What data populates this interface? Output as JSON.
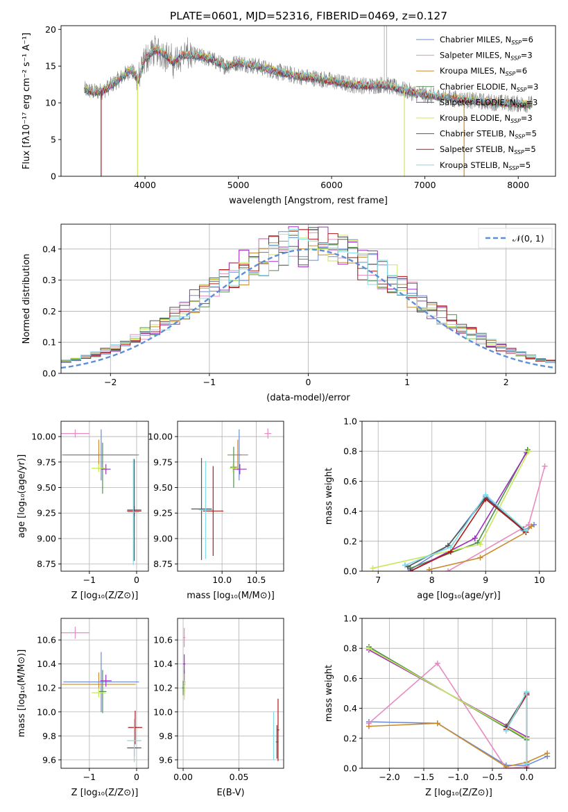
{
  "figure": {
    "title": "PLATE=0601, MJD=52316, FIBERID=0469, z=0.127"
  },
  "colors": {
    "Chabrier MILES": "#6a8ad9",
    "Salpeter MILES": "#e88ac0",
    "Kroupa MILES": "#c98a2e",
    "Chabrier ELODIE": "#4f8f4f",
    "Salpeter ELODIE": "#9b30c0",
    "Kroupa ELODIE": "#c8e85a",
    "Chabrier STELIB": "#555555",
    "Salpeter STELIB": "#b01818",
    "Kroupa STELIB": "#80dce8",
    "data": "#808080",
    "normal": "#5b8fd8"
  },
  "chart_data": [
    {
      "id": "spectrum",
      "type": "line",
      "xlabel": "wavelength [Angstrom, rest frame]",
      "ylabel": "Flux [fλ10⁻¹⁷ erg cm⁻² s⁻¹ A⁻¹]",
      "xlim": [
        3100,
        8400
      ],
      "ylim": [
        0,
        20.5
      ],
      "xticks": [
        4000,
        5000,
        6000,
        7000,
        8000
      ],
      "yticks": [
        0,
        5,
        10,
        15,
        20
      ],
      "legend_position": "top-right",
      "legend": [
        {
          "label": "Chabrier MILES, N",
          "sub": "SSP",
          "tail": "=6",
          "model": "Chabrier MILES"
        },
        {
          "label": "Salpeter MILES, N",
          "sub": "SSP",
          "tail": "=3",
          "model": "Salpeter MILES"
        },
        {
          "label": "Kroupa MILES, N",
          "sub": "SSP",
          "tail": "=6",
          "model": "Kroupa MILES"
        },
        {
          "label": "Chabrier ELODIE, N",
          "sub": "SSP",
          "tail": "=3",
          "model": "Chabrier ELODIE"
        },
        {
          "label": "Salpeter ELODIE, N",
          "sub": "SSP",
          "tail": "=3",
          "model": "Salpeter ELODIE"
        },
        {
          "label": "Kroupa ELODIE, N",
          "sub": "SSP",
          "tail": "=3",
          "model": "Kroupa ELODIE"
        },
        {
          "label": "Chabrier STELIB, N",
          "sub": "SSP",
          "tail": "=5",
          "model": "Chabrier STELIB"
        },
        {
          "label": "Salpeter STELIB, N",
          "sub": "SSP",
          "tail": "=5",
          "model": "Salpeter STELIB"
        },
        {
          "label": "Kroupa STELIB, N",
          "sub": "SSP",
          "tail": "=5",
          "model": "Kroupa STELIB"
        }
      ],
      "envelope": {
        "x": [
          3350,
          3450,
          3550,
          3650,
          3750,
          3850,
          3930,
          4000,
          4100,
          4200,
          4300,
          4400,
          4500,
          4700,
          4860,
          5000,
          5200,
          5400,
          5600,
          5800,
          6000,
          6200,
          6400,
          6560,
          6700,
          6900,
          7100,
          7300,
          7500,
          7800,
          8100
        ],
        "y": [
          11.8,
          11.5,
          11.6,
          12.5,
          13.5,
          14.5,
          13.0,
          16.0,
          17.2,
          16.8,
          15.5,
          16.5,
          16.5,
          16.0,
          15.0,
          15.5,
          15.0,
          14.3,
          13.7,
          13.4,
          13.0,
          12.5,
          12.3,
          12.5,
          12.0,
          11.3,
          10.9,
          10.6,
          10.3,
          10.0,
          9.8
        ]
      },
      "absorption_dips": [
        {
          "x": 3530,
          "y": 0
        },
        {
          "x": 3920,
          "y": 0
        },
        {
          "x": 6780,
          "y": 0
        },
        {
          "x": 7420,
          "y": 0
        }
      ],
      "emission_spikes": [
        {
          "x": 6565,
          "y": 20.5
        },
        {
          "x": 6590,
          "y": 20.5
        }
      ]
    },
    {
      "id": "residuals",
      "type": "line",
      "xlabel": "(data-model)/error",
      "ylabel": "Normed distribution",
      "xlim": [
        -2.5,
        2.5
      ],
      "ylim": [
        0,
        0.48
      ],
      "xticks": [
        -2,
        -1,
        0,
        1,
        2
      ],
      "xticklabels": [
        "−2",
        "−1",
        "0",
        "1",
        "2"
      ],
      "yticks": [
        0,
        0.1,
        0.2,
        0.3,
        0.4
      ],
      "yticklabels": [
        "0.0",
        "0.1",
        "0.2",
        "0.3",
        "0.4"
      ],
      "legend_position": "top-right",
      "legend_label": "𝒩(0, 1)",
      "normal": {
        "mu": 0,
        "sigma": 1
      },
      "bin_width": 0.1,
      "bin_start": -2.5
    },
    {
      "id": "age-vs-Z",
      "type": "scatter",
      "xlabel": "Z [log₁₀(Z/Z⊙)]",
      "ylabel": "age  [log₁₀(age/yr)]",
      "xlim": [
        -1.6,
        0.25
      ],
      "ylim": [
        8.68,
        10.15
      ],
      "xticks": [
        -1,
        0
      ],
      "xticklabels": [
        "−1",
        "0"
      ],
      "yticks": [
        8.75,
        9.0,
        9.25,
        9.5,
        9.75,
        10.0
      ],
      "yticklabels": [
        "8.75",
        "9.00",
        "9.25",
        "9.50",
        "9.75",
        "10.00"
      ],
      "points": [
        {
          "model": "Salpeter MILES",
          "x": -1.3,
          "y": 10.03,
          "xerr": 0.3,
          "yerr": 0.04
        },
        {
          "model": "Kroupa MILES",
          "x": -0.8,
          "y": 9.82,
          "xerr": 0.78,
          "yerr": 0.15
        },
        {
          "model": "Chabrier MILES",
          "x": -0.75,
          "y": 9.82,
          "xerr": 0.8,
          "yerr": 0.25
        },
        {
          "model": "Chabrier ELODIE",
          "x": -0.72,
          "y": 9.69,
          "xerr": 0.08,
          "yerr": 0.25
        },
        {
          "model": "Salpeter ELODIE",
          "x": -0.65,
          "y": 9.68,
          "xerr": 0.1,
          "yerr": 0.05
        },
        {
          "model": "Kroupa ELODIE",
          "x": -0.8,
          "y": 9.69,
          "xerr": 0.15,
          "yerr": 0.04
        },
        {
          "model": "Chabrier STELIB",
          "x": -0.05,
          "y": 9.28,
          "xerr": 0.15,
          "yerr": 0.5
        },
        {
          "model": "Salpeter STELIB",
          "x": -0.05,
          "y": 9.27,
          "xerr": 0.15,
          "yerr": 0.05
        },
        {
          "model": "Kroupa STELIB",
          "x": -0.07,
          "y": 9.26,
          "xerr": 0.12,
          "yerr": 0.52
        }
      ]
    },
    {
      "id": "age-vs-mass",
      "type": "scatter",
      "xlabel": "mass [log₁₀(M/M⊙)]",
      "ylabel": "",
      "xlim": [
        9.35,
        10.9
      ],
      "ylim": [
        8.68,
        10.15
      ],
      "xticks": [
        10.0,
        10.5
      ],
      "xticklabels": [
        "10.0",
        "10.5"
      ],
      "yticks": [
        8.75,
        9.0,
        9.25,
        9.5,
        9.75,
        10.0
      ],
      "yticklabels": [
        "8.75",
        "9.00",
        "9.25",
        "9.50",
        "9.75",
        "10.00"
      ],
      "points": [
        {
          "model": "Salpeter MILES",
          "x": 10.67,
          "y": 10.03,
          "xerr": 0.05,
          "yerr": 0.05
        },
        {
          "model": "Kroupa MILES",
          "x": 10.23,
          "y": 9.82,
          "xerr": 0.15,
          "yerr": 0.15
        },
        {
          "model": "Chabrier MILES",
          "x": 10.25,
          "y": 9.82,
          "xerr": 0.03,
          "yerr": 0.25
        },
        {
          "model": "Chabrier ELODIE",
          "x": 10.17,
          "y": 9.7,
          "xerr": 0.05,
          "yerr": 0.2
        },
        {
          "model": "Salpeter ELODIE",
          "x": 10.26,
          "y": 9.68,
          "xerr": 0.1,
          "yerr": 0.05
        },
        {
          "model": "Kroupa ELODIE",
          "x": 10.16,
          "y": 9.69,
          "xerr": 0.05,
          "yerr": 0.04
        },
        {
          "model": "Chabrier STELIB",
          "x": 9.7,
          "y": 9.29,
          "xerr": 0.15,
          "yerr": 0.5
        },
        {
          "model": "Salpeter STELIB",
          "x": 9.87,
          "y": 9.27,
          "xerr": 0.15,
          "yerr": 0.44
        },
        {
          "model": "Kroupa STELIB",
          "x": 9.76,
          "y": 9.28,
          "xerr": 0.1,
          "yerr": 0.48
        }
      ]
    },
    {
      "id": "massweight-vs-age",
      "type": "line",
      "xlabel": "age  [log₁₀(age/yr)]",
      "ylabel": "mass weight",
      "xlim": [
        6.7,
        10.3
      ],
      "ylim": [
        0,
        1
      ],
      "xticks": [
        7,
        8,
        9,
        10
      ],
      "yticks": [
        0,
        0.2,
        0.4,
        0.6,
        0.8,
        1.0
      ],
      "yticklabels": [
        "0.0",
        "0.2",
        "0.4",
        "0.6",
        "0.8",
        "1.0"
      ],
      "series": [
        {
          "model": "Chabrier MILES",
          "x": [
            7.5,
            7.6,
            8.3,
            9.0,
            9.7,
            9.9
          ],
          "y": [
            0.04,
            0.01,
            0.17,
            0.5,
            0.27,
            0.31
          ]
        },
        {
          "model": "Salpeter MILES",
          "x": [
            8.3,
            9.8,
            10.1
          ],
          "y": [
            0.0,
            0.31,
            0.7
          ]
        },
        {
          "model": "Kroupa MILES",
          "x": [
            7.95,
            8.9,
            9.75,
            9.85
          ],
          "y": [
            0.01,
            0.09,
            0.26,
            0.3
          ]
        },
        {
          "model": "Chabrier ELODIE",
          "x": [
            7.6,
            8.85,
            9.78
          ],
          "y": [
            0.02,
            0.19,
            0.81
          ]
        },
        {
          "model": "Salpeter ELODIE",
          "x": [
            7.6,
            8.8,
            9.76
          ],
          "y": [
            0.0,
            0.22,
            0.79
          ]
        },
        {
          "model": "Kroupa ELODIE",
          "x": [
            6.9,
            8.9,
            9.8
          ],
          "y": [
            0.02,
            0.18,
            0.8
          ]
        },
        {
          "model": "Chabrier STELIB",
          "x": [
            7.55,
            8.3,
            9.0,
            9.7
          ],
          "y": [
            0.03,
            0.17,
            0.49,
            0.28
          ]
        },
        {
          "model": "Salpeter STELIB",
          "x": [
            7.6,
            8.35,
            9.0,
            9.75
          ],
          "y": [
            0.0,
            0.13,
            0.48,
            0.26
          ]
        },
        {
          "model": "Kroupa STELIB",
          "x": [
            7.5,
            8.35,
            9.0,
            9.75
          ],
          "y": [
            0.04,
            0.16,
            0.51,
            0.27
          ]
        }
      ]
    },
    {
      "id": "mass-vs-Z",
      "type": "scatter",
      "xlabel": "Z [log₁₀(Z/Z⊙)]",
      "ylabel": "mass [log₁₀(M/M⊙)]",
      "xlim": [
        -1.6,
        0.25
      ],
      "ylim": [
        9.53,
        10.78
      ],
      "xticks": [
        -1,
        0
      ],
      "xticklabels": [
        "−1",
        "0"
      ],
      "yticks": [
        9.6,
        9.8,
        10.0,
        10.2,
        10.4,
        10.6
      ],
      "yticklabels": [
        "9.6",
        "9.8",
        "10.0",
        "10.2",
        "10.4",
        "10.6"
      ],
      "points": [
        {
          "model": "Salpeter MILES",
          "x": -1.3,
          "y": 10.66,
          "xerr": 0.3,
          "yerr": 0.05
        },
        {
          "model": "Kroupa MILES",
          "x": -0.8,
          "y": 10.23,
          "xerr": 0.78,
          "yerr": 0.1
        },
        {
          "model": "Chabrier MILES",
          "x": -0.75,
          "y": 10.25,
          "xerr": 0.8,
          "yerr": 0.25
        },
        {
          "model": "Chabrier ELODIE",
          "x": -0.72,
          "y": 10.17,
          "xerr": 0.08,
          "yerr": 0.18
        },
        {
          "model": "Salpeter ELODIE",
          "x": -0.65,
          "y": 10.26,
          "xerr": 0.12,
          "yerr": 0.05
        },
        {
          "model": "Kroupa ELODIE",
          "x": -0.8,
          "y": 10.16,
          "xerr": 0.15,
          "yerr": 0.04
        },
        {
          "model": "Chabrier STELIB",
          "x": -0.05,
          "y": 9.7,
          "xerr": 0.15,
          "yerr": 0.07
        },
        {
          "model": "Salpeter STELIB",
          "x": -0.03,
          "y": 9.87,
          "xerr": 0.15,
          "yerr": 0.14
        },
        {
          "model": "Kroupa STELIB",
          "x": -0.05,
          "y": 9.76,
          "xerr": 0.15,
          "yerr": 0.18
        }
      ]
    },
    {
      "id": "mass-vs-EBV",
      "type": "scatter",
      "xlabel": "E(B-V)",
      "ylabel": "",
      "xlim": [
        -0.005,
        0.09
      ],
      "ylim": [
        9.53,
        10.78
      ],
      "xticks": [
        0.0,
        0.05
      ],
      "xticklabels": [
        "0.00",
        "0.05"
      ],
      "yticks": [
        9.6,
        9.8,
        10.0,
        10.2,
        10.4,
        10.6
      ],
      "yticklabels": [
        "9.6",
        "9.8",
        "10.0",
        "10.2",
        "10.4",
        "10.6"
      ],
      "points": [
        {
          "model": "Salpeter MILES",
          "x": 0.001,
          "y": 10.62,
          "xerr": 0.001,
          "yerr": 0.08
        },
        {
          "model": "Chabrier MILES",
          "x": 0.001,
          "y": 10.25,
          "xerr": 0.001,
          "yerr": 0.1
        },
        {
          "model": "Kroupa MILES",
          "x": 0.001,
          "y": 10.23,
          "xerr": 0.001,
          "yerr": 0.1
        },
        {
          "model": "Salpeter ELODIE",
          "x": 0.001,
          "y": 10.4,
          "xerr": 0.001,
          "yerr": 0.08
        },
        {
          "model": "Kroupa ELODIE",
          "x": 0.001,
          "y": 10.18,
          "xerr": 0.001,
          "yerr": 0.08
        },
        {
          "model": "Chabrier ELODIE",
          "x": 0.0,
          "y": 10.2,
          "xerr": 0.001,
          "yerr": 0.06
        },
        {
          "model": "Kroupa STELIB",
          "x": 0.081,
          "y": 9.8,
          "xerr": 0.001,
          "yerr": 0.2
        },
        {
          "model": "Salpeter STELIB",
          "x": 0.085,
          "y": 9.85,
          "xerr": 0.001,
          "yerr": 0.26
        },
        {
          "model": "Chabrier STELIB",
          "x": 0.084,
          "y": 9.75,
          "xerr": 0.001,
          "yerr": 0.14
        }
      ]
    },
    {
      "id": "massweight-vs-Z",
      "type": "line",
      "xlabel": "Z [log₁₀(Z/Z⊙)]",
      "ylabel": "mass weight",
      "xlim": [
        -2.4,
        0.42
      ],
      "ylim": [
        0,
        1
      ],
      "xticks": [
        -2.0,
        -1.5,
        -1.0,
        -0.5,
        0.0
      ],
      "xticklabels": [
        "−2.0",
        "−1.5",
        "−1.0",
        "−0.5",
        "0.0"
      ],
      "yticks": [
        0,
        0.2,
        0.4,
        0.6,
        0.8,
        1.0
      ],
      "yticklabels": [
        "0.0",
        "0.2",
        "0.4",
        "0.6",
        "0.8",
        "1.0"
      ],
      "series": [
        {
          "model": "Chabrier MILES",
          "x": [
            -2.3,
            -1.3,
            -0.3,
            0.0,
            0.3
          ],
          "y": [
            0.31,
            0.3,
            0.02,
            0.02,
            0.08
          ]
        },
        {
          "model": "Salpeter MILES",
          "x": [
            -2.3,
            -1.3,
            -0.3,
            0.0
          ],
          "y": [
            0.3,
            0.7,
            0.0,
            0.01
          ]
        },
        {
          "model": "Kroupa MILES",
          "x": [
            -2.3,
            -1.3,
            -0.3,
            0.0,
            0.3
          ],
          "y": [
            0.28,
            0.3,
            0.01,
            0.04,
            0.1
          ]
        },
        {
          "model": "Chabrier ELODIE",
          "x": [
            -2.3,
            0.0
          ],
          "y": [
            0.81,
            0.19
          ]
        },
        {
          "model": "Salpeter ELODIE",
          "x": [
            -2.3,
            0.0
          ],
          "y": [
            0.79,
            0.21
          ]
        },
        {
          "model": "Kroupa ELODIE",
          "x": [
            -2.3,
            0.0
          ],
          "y": [
            0.8,
            0.2
          ]
        },
        {
          "model": "Chabrier STELIB",
          "x": [
            -0.3,
            0.0,
            0.0
          ],
          "y": [
            0.28,
            0.5,
            0.0
          ]
        },
        {
          "model": "Salpeter STELIB",
          "x": [
            -0.3,
            0.0,
            0.0
          ],
          "y": [
            0.26,
            0.49,
            0.0
          ]
        },
        {
          "model": "Kroupa STELIB",
          "x": [
            -0.3,
            0.0,
            0.0
          ],
          "y": [
            0.25,
            0.51,
            0.03
          ]
        }
      ]
    }
  ]
}
